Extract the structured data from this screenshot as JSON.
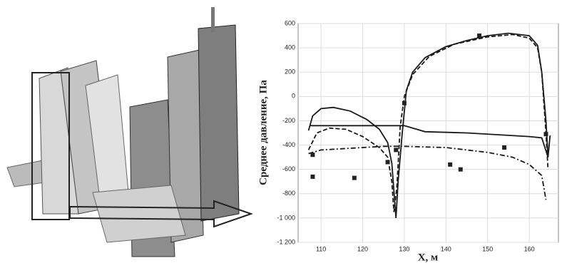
{
  "chart_data": {
    "type": "line",
    "ylabel": "Среднее давление, Па",
    "xlabel": "X, м",
    "xlim": [
      104.5,
      167
    ],
    "ylim": [
      -1200,
      600
    ],
    "xticks": [
      110,
      120,
      130,
      140,
      150,
      160
    ],
    "yticks": [
      600,
      400,
      200,
      0,
      -200,
      -400,
      -600,
      -800,
      {
        "value": -1000,
        "label": "-1 000"
      },
      {
        "value": -1200,
        "label": "-1 200"
      }
    ],
    "grid": true,
    "series": [
      {
        "color": "#1a1a1a",
        "dash": "solid",
        "x": [
          107,
          108,
          110,
          113,
          117,
          121,
          124,
          126,
          127,
          128,
          128.5,
          129.5,
          130.5,
          132,
          135,
          140,
          145,
          150,
          155,
          160,
          162,
          163,
          164,
          164.5
        ],
        "values": [
          -280,
          -160,
          -100,
          -90,
          -120,
          -190,
          -270,
          -380,
          -550,
          -1000,
          -700,
          -300,
          50,
          200,
          320,
          410,
          460,
          500,
          520,
          500,
          420,
          200,
          -200,
          -500
        ]
      },
      {
        "color": "#1a1a1a",
        "dash": "solid",
        "x": [
          107.5,
          110,
          120,
          130,
          135,
          145,
          155,
          160,
          163,
          164.5,
          165
        ],
        "values": [
          -240,
          -240,
          -240,
          -240,
          -290,
          -300,
          -320,
          -330,
          -340,
          -500,
          -320
        ]
      },
      {
        "color": "#1a1a1a",
        "dash": "dashed",
        "x": [
          107,
          109,
          112,
          116,
          120,
          124,
          126,
          127,
          127.5,
          128.2,
          129,
          130,
          132,
          136,
          142,
          150,
          156,
          160,
          162,
          163,
          164,
          164.5
        ],
        "values": [
          -440,
          -300,
          -260,
          -270,
          -330,
          -420,
          -500,
          -700,
          -950,
          -750,
          -250,
          0,
          180,
          330,
          430,
          490,
          510,
          480,
          400,
          200,
          -300,
          -600
        ]
      },
      {
        "color": "#1a1a1a",
        "dash": "dashdot",
        "x": [
          107,
          110,
          115,
          120,
          125,
          130,
          140,
          150,
          156,
          160,
          163,
          164
        ],
        "values": [
          -470,
          -440,
          -430,
          -420,
          -410,
          -410,
          -420,
          -460,
          -500,
          -560,
          -650,
          -850
        ]
      },
      {
        "color": "#222222",
        "marker": "square",
        "x": [
          108,
          108,
          118,
          126,
          128,
          130,
          141,
          143.5,
          148,
          154,
          164
        ],
        "values": [
          -480,
          -660,
          -670,
          -540,
          -440,
          -55,
          -560,
          -600,
          500,
          -420,
          -310
        ]
      }
    ]
  }
}
